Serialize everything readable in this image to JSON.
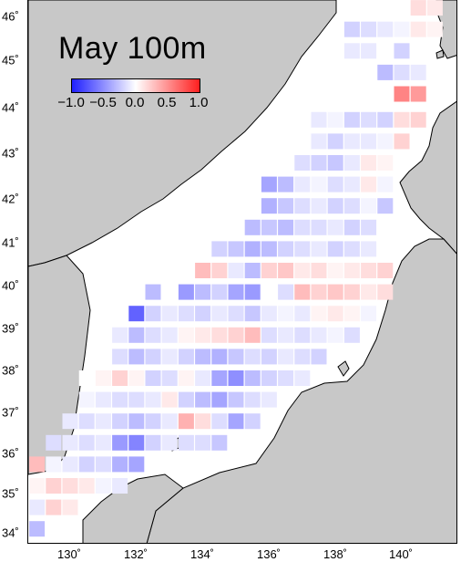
{
  "title": "May 100m",
  "colorbar": {
    "min": -1.0,
    "max": 1.0,
    "ticks": [
      "−1.0",
      "−0.5",
      "0.0",
      "0.5",
      "1.0"
    ],
    "colors": [
      "#1f1fff",
      "#8f8fff",
      "#ffffff",
      "#ff9090",
      "#ff1f1f"
    ]
  },
  "axes": {
    "lat_labels": [
      "46˚",
      "45˚",
      "44˚",
      "43˚",
      "42˚",
      "41˚",
      "40˚",
      "39˚",
      "38˚",
      "37˚",
      "36˚",
      "35˚",
      "34˚"
    ],
    "lon_labels": [
      "130˚",
      "132˚",
      "134˚",
      "136˚",
      "138˚",
      "140˚"
    ]
  },
  "colors": {
    "land": "#c8c8c8",
    "sea": "#ffffff",
    "coast": "#000000"
  },
  "chart_data": {
    "type": "heatmap",
    "title": "May 100m",
    "value_range": [
      -1.0,
      1.0
    ],
    "cells": [
      {
        "lon": 140.5,
        "lat": 46.2,
        "v": 0.15
      },
      {
        "lon": 141.0,
        "lat": 46.2,
        "v": 0.1
      },
      {
        "lon": 138.5,
        "lat": 45.7,
        "v": -0.2
      },
      {
        "lon": 139.0,
        "lat": 45.7,
        "v": -0.15
      },
      {
        "lon": 139.5,
        "lat": 45.7,
        "v": -0.1
      },
      {
        "lon": 140.0,
        "lat": 45.7,
        "v": -0.05
      },
      {
        "lon": 140.5,
        "lat": 45.7,
        "v": 0.1
      },
      {
        "lon": 141.0,
        "lat": 45.7,
        "v": 0.05
      },
      {
        "lon": 138.5,
        "lat": 45.2,
        "v": -0.1
      },
      {
        "lon": 139.0,
        "lat": 45.2,
        "v": -0.1
      },
      {
        "lon": 139.5,
        "lat": 45.2,
        "v": 0.0
      },
      {
        "lon": 140.0,
        "lat": 45.2,
        "v": -0.2
      },
      {
        "lon": 139.5,
        "lat": 44.7,
        "v": -0.3
      },
      {
        "lon": 140.0,
        "lat": 44.7,
        "v": -0.15
      },
      {
        "lon": 140.5,
        "lat": 44.7,
        "v": -0.1
      },
      {
        "lon": 140.0,
        "lat": 44.2,
        "v": 0.55
      },
      {
        "lon": 140.5,
        "lat": 44.2,
        "v": 0.45
      },
      {
        "lon": 137.5,
        "lat": 43.6,
        "v": -0.1
      },
      {
        "lon": 138.0,
        "lat": 43.6,
        "v": -0.05
      },
      {
        "lon": 138.5,
        "lat": 43.6,
        "v": -0.2
      },
      {
        "lon": 139.0,
        "lat": 43.6,
        "v": -0.15
      },
      {
        "lon": 139.5,
        "lat": 43.6,
        "v": -0.2
      },
      {
        "lon": 140.0,
        "lat": 43.6,
        "v": 0.15
      },
      {
        "lon": 140.5,
        "lat": 43.6,
        "v": 0.2
      },
      {
        "lon": 137.5,
        "lat": 43.1,
        "v": -0.1
      },
      {
        "lon": 138.0,
        "lat": 43.1,
        "v": -0.2
      },
      {
        "lon": 138.5,
        "lat": 43.1,
        "v": -0.1
      },
      {
        "lon": 139.0,
        "lat": 43.1,
        "v": -0.1
      },
      {
        "lon": 139.5,
        "lat": 43.1,
        "v": -0.05
      },
      {
        "lon": 140.0,
        "lat": 43.1,
        "v": 0.2
      },
      {
        "lon": 137.0,
        "lat": 42.6,
        "v": -0.15
      },
      {
        "lon": 137.5,
        "lat": 42.6,
        "v": -0.2
      },
      {
        "lon": 138.0,
        "lat": 42.6,
        "v": -0.25
      },
      {
        "lon": 138.5,
        "lat": 42.6,
        "v": -0.1
      },
      {
        "lon": 139.0,
        "lat": 42.6,
        "v": 0.1
      },
      {
        "lon": 139.5,
        "lat": 42.6,
        "v": 0.05
      },
      {
        "lon": 136.0,
        "lat": 42.1,
        "v": -0.4
      },
      {
        "lon": 136.5,
        "lat": 42.1,
        "v": -0.3
      },
      {
        "lon": 137.0,
        "lat": 42.1,
        "v": -0.1
      },
      {
        "lon": 137.5,
        "lat": 42.1,
        "v": -0.05
      },
      {
        "lon": 138.0,
        "lat": 42.1,
        "v": -0.15
      },
      {
        "lon": 138.5,
        "lat": 42.1,
        "v": -0.1
      },
      {
        "lon": 139.0,
        "lat": 42.1,
        "v": 0.1
      },
      {
        "lon": 139.5,
        "lat": 42.1,
        "v": -0.05
      },
      {
        "lon": 136.0,
        "lat": 41.6,
        "v": -0.35
      },
      {
        "lon": 136.5,
        "lat": 41.6,
        "v": -0.25
      },
      {
        "lon": 137.0,
        "lat": 41.6,
        "v": -0.15
      },
      {
        "lon": 137.5,
        "lat": 41.6,
        "v": -0.1
      },
      {
        "lon": 138.0,
        "lat": 41.6,
        "v": -0.2
      },
      {
        "lon": 138.5,
        "lat": 41.6,
        "v": -0.15
      },
      {
        "lon": 139.0,
        "lat": 41.6,
        "v": -0.05
      },
      {
        "lon": 139.5,
        "lat": 41.6,
        "v": -0.25
      },
      {
        "lon": 135.5,
        "lat": 41.1,
        "v": -0.3
      },
      {
        "lon": 136.0,
        "lat": 41.1,
        "v": -0.25
      },
      {
        "lon": 136.5,
        "lat": 41.1,
        "v": -0.3
      },
      {
        "lon": 137.0,
        "lat": 41.1,
        "v": -0.15
      },
      {
        "lon": 137.5,
        "lat": 41.1,
        "v": -0.15
      },
      {
        "lon": 138.0,
        "lat": 41.1,
        "v": -0.1
      },
      {
        "lon": 138.5,
        "lat": 41.1,
        "v": -0.2
      },
      {
        "lon": 139.0,
        "lat": 41.1,
        "v": -0.15
      },
      {
        "lon": 134.5,
        "lat": 40.6,
        "v": -0.2
      },
      {
        "lon": 135.0,
        "lat": 40.6,
        "v": -0.25
      },
      {
        "lon": 135.5,
        "lat": 40.6,
        "v": -0.35
      },
      {
        "lon": 136.0,
        "lat": 40.6,
        "v": -0.3
      },
      {
        "lon": 136.5,
        "lat": 40.6,
        "v": -0.2
      },
      {
        "lon": 137.0,
        "lat": 40.6,
        "v": -0.15
      },
      {
        "lon": 137.5,
        "lat": 40.6,
        "v": -0.1
      },
      {
        "lon": 138.0,
        "lat": 40.6,
        "v": -0.2
      },
      {
        "lon": 138.5,
        "lat": 40.6,
        "v": -0.15
      },
      {
        "lon": 139.0,
        "lat": 40.6,
        "v": -0.1
      },
      {
        "lon": 134.0,
        "lat": 40.1,
        "v": 0.3
      },
      {
        "lon": 134.5,
        "lat": 40.1,
        "v": 0.2
      },
      {
        "lon": 135.0,
        "lat": 40.1,
        "v": -0.1
      },
      {
        "lon": 135.5,
        "lat": 40.1,
        "v": -0.3
      },
      {
        "lon": 136.0,
        "lat": 40.1,
        "v": 0.2
      },
      {
        "lon": 136.5,
        "lat": 40.1,
        "v": 0.25
      },
      {
        "lon": 137.0,
        "lat": 40.1,
        "v": 0.1
      },
      {
        "lon": 137.5,
        "lat": 40.1,
        "v": 0.15
      },
      {
        "lon": 138.0,
        "lat": 40.1,
        "v": 0.05
      },
      {
        "lon": 138.5,
        "lat": 40.1,
        "v": 0.1
      },
      {
        "lon": 139.0,
        "lat": 40.1,
        "v": 0.15
      },
      {
        "lon": 139.5,
        "lat": 40.1,
        "v": 0.2
      },
      {
        "lon": 132.5,
        "lat": 39.6,
        "v": -0.3
      },
      {
        "lon": 133.5,
        "lat": 39.6,
        "v": -0.45
      },
      {
        "lon": 134.0,
        "lat": 39.6,
        "v": -0.3
      },
      {
        "lon": 134.5,
        "lat": 39.6,
        "v": -0.2
      },
      {
        "lon": 135.0,
        "lat": 39.6,
        "v": -0.4
      },
      {
        "lon": 135.5,
        "lat": 39.6,
        "v": -0.45
      },
      {
        "lon": 136.0,
        "lat": 39.6,
        "v": 0.0
      },
      {
        "lon": 136.5,
        "lat": 39.6,
        "v": -0.15
      },
      {
        "lon": 137.0,
        "lat": 39.6,
        "v": 0.3
      },
      {
        "lon": 137.5,
        "lat": 39.6,
        "v": 0.2
      },
      {
        "lon": 138.0,
        "lat": 39.6,
        "v": 0.25
      },
      {
        "lon": 138.5,
        "lat": 39.6,
        "v": 0.2
      },
      {
        "lon": 139.0,
        "lat": 39.6,
        "v": 0.1
      },
      {
        "lon": 139.5,
        "lat": 39.6,
        "v": 0.15
      },
      {
        "lon": 132.0,
        "lat": 39.1,
        "v": -0.7
      },
      {
        "lon": 132.5,
        "lat": 39.1,
        "v": -0.2
      },
      {
        "lon": 133.0,
        "lat": 39.1,
        "v": -0.1
      },
      {
        "lon": 133.5,
        "lat": 39.1,
        "v": -0.15
      },
      {
        "lon": 134.0,
        "lat": 39.1,
        "v": -0.2
      },
      {
        "lon": 134.5,
        "lat": 39.1,
        "v": -0.1
      },
      {
        "lon": 135.0,
        "lat": 39.1,
        "v": -0.15
      },
      {
        "lon": 135.5,
        "lat": 39.1,
        "v": -0.25
      },
      {
        "lon": 136.0,
        "lat": 39.1,
        "v": -0.1
      },
      {
        "lon": 136.5,
        "lat": 39.1,
        "v": -0.05
      },
      {
        "lon": 137.0,
        "lat": 39.1,
        "v": -0.1
      },
      {
        "lon": 137.5,
        "lat": 39.1,
        "v": 0.05
      },
      {
        "lon": 138.0,
        "lat": 39.1,
        "v": 0.1
      },
      {
        "lon": 138.5,
        "lat": 39.1,
        "v": 0.05
      },
      {
        "lon": 139.0,
        "lat": 39.1,
        "v": -0.05
      },
      {
        "lon": 131.5,
        "lat": 38.6,
        "v": -0.1
      },
      {
        "lon": 132.0,
        "lat": 38.6,
        "v": -0.3
      },
      {
        "lon": 132.5,
        "lat": 38.6,
        "v": -0.15
      },
      {
        "lon": 133.0,
        "lat": 38.6,
        "v": -0.1
      },
      {
        "lon": 133.5,
        "lat": 38.6,
        "v": 0.05
      },
      {
        "lon": 134.0,
        "lat": 38.6,
        "v": 0.1
      },
      {
        "lon": 134.5,
        "lat": 38.6,
        "v": 0.15
      },
      {
        "lon": 135.0,
        "lat": 38.6,
        "v": 0.2
      },
      {
        "lon": 135.5,
        "lat": 38.6,
        "v": 0.3
      },
      {
        "lon": 136.0,
        "lat": 38.6,
        "v": -0.15
      },
      {
        "lon": 136.5,
        "lat": 38.6,
        "v": -0.1
      },
      {
        "lon": 137.0,
        "lat": 38.6,
        "v": -0.15
      },
      {
        "lon": 137.5,
        "lat": 38.6,
        "v": -0.1
      },
      {
        "lon": 138.0,
        "lat": 38.6,
        "v": -0.05
      },
      {
        "lon": 138.5,
        "lat": 38.6,
        "v": -0.15
      },
      {
        "lon": 131.5,
        "lat": 38.1,
        "v": -0.15
      },
      {
        "lon": 132.0,
        "lat": 38.1,
        "v": -0.3
      },
      {
        "lon": 132.5,
        "lat": 38.1,
        "v": -0.2
      },
      {
        "lon": 133.0,
        "lat": 38.1,
        "v": -0.1
      },
      {
        "lon": 133.5,
        "lat": 38.1,
        "v": -0.2
      },
      {
        "lon": 134.0,
        "lat": 38.1,
        "v": -0.3
      },
      {
        "lon": 134.5,
        "lat": 38.1,
        "v": -0.35
      },
      {
        "lon": 135.0,
        "lat": 38.1,
        "v": -0.25
      },
      {
        "lon": 135.5,
        "lat": 38.1,
        "v": -0.15
      },
      {
        "lon": 136.0,
        "lat": 38.1,
        "v": -0.2
      },
      {
        "lon": 136.5,
        "lat": 38.1,
        "v": -0.1
      },
      {
        "lon": 137.0,
        "lat": 38.1,
        "v": -0.15
      },
      {
        "lon": 137.5,
        "lat": 38.1,
        "v": -0.2
      },
      {
        "lon": 130.5,
        "lat": 37.6,
        "v": 0.0
      },
      {
        "lon": 131.0,
        "lat": 37.6,
        "v": 0.05
      },
      {
        "lon": 131.5,
        "lat": 37.6,
        "v": 0.2
      },
      {
        "lon": 132.0,
        "lat": 37.6,
        "v": 0.05
      },
      {
        "lon": 132.5,
        "lat": 37.6,
        "v": -0.2
      },
      {
        "lon": 133.0,
        "lat": 37.6,
        "v": -0.15
      },
      {
        "lon": 133.5,
        "lat": 37.6,
        "v": 0.05
      },
      {
        "lon": 134.0,
        "lat": 37.6,
        "v": -0.1
      },
      {
        "lon": 134.5,
        "lat": 37.6,
        "v": -0.4
      },
      {
        "lon": 135.0,
        "lat": 37.6,
        "v": -0.5
      },
      {
        "lon": 135.5,
        "lat": 37.6,
        "v": -0.3
      },
      {
        "lon": 136.0,
        "lat": 37.6,
        "v": -0.2
      },
      {
        "lon": 136.5,
        "lat": 37.6,
        "v": -0.15
      },
      {
        "lon": 137.0,
        "lat": 37.6,
        "v": -0.1
      },
      {
        "lon": 130.5,
        "lat": 37.1,
        "v": -0.05
      },
      {
        "lon": 131.0,
        "lat": 37.1,
        "v": -0.1
      },
      {
        "lon": 131.5,
        "lat": 37.1,
        "v": -0.15
      },
      {
        "lon": 132.0,
        "lat": 37.1,
        "v": -0.15
      },
      {
        "lon": 132.5,
        "lat": 37.1,
        "v": -0.1
      },
      {
        "lon": 133.0,
        "lat": 37.1,
        "v": 0.1
      },
      {
        "lon": 133.5,
        "lat": 37.1,
        "v": -0.2
      },
      {
        "lon": 134.0,
        "lat": 37.1,
        "v": -0.3
      },
      {
        "lon": 134.5,
        "lat": 37.1,
        "v": -0.4
      },
      {
        "lon": 135.0,
        "lat": 37.1,
        "v": -0.25
      },
      {
        "lon": 135.5,
        "lat": 37.1,
        "v": -0.15
      },
      {
        "lon": 136.0,
        "lat": 37.1,
        "v": -0.1
      },
      {
        "lon": 130.0,
        "lat": 36.6,
        "v": -0.1
      },
      {
        "lon": 130.5,
        "lat": 36.6,
        "v": -0.15
      },
      {
        "lon": 131.0,
        "lat": 36.6,
        "v": -0.1
      },
      {
        "lon": 131.5,
        "lat": 36.6,
        "v": -0.2
      },
      {
        "lon": 132.0,
        "lat": 36.6,
        "v": -0.3
      },
      {
        "lon": 132.5,
        "lat": 36.6,
        "v": -0.2
      },
      {
        "lon": 133.0,
        "lat": 36.6,
        "v": -0.1
      },
      {
        "lon": 133.5,
        "lat": 36.6,
        "v": 0.35
      },
      {
        "lon": 134.0,
        "lat": 36.6,
        "v": 0.15
      },
      {
        "lon": 134.5,
        "lat": 36.6,
        "v": -0.15
      },
      {
        "lon": 135.0,
        "lat": 36.6,
        "v": -0.4
      },
      {
        "lon": 135.5,
        "lat": 36.6,
        "v": -0.2
      },
      {
        "lon": 129.5,
        "lat": 36.1,
        "v": -0.15
      },
      {
        "lon": 130.0,
        "lat": 36.1,
        "v": -0.1
      },
      {
        "lon": 130.5,
        "lat": 36.1,
        "v": -0.15
      },
      {
        "lon": 131.0,
        "lat": 36.1,
        "v": -0.1
      },
      {
        "lon": 131.5,
        "lat": 36.1,
        "v": -0.45
      },
      {
        "lon": 132.0,
        "lat": 36.1,
        "v": -0.55
      },
      {
        "lon": 132.5,
        "lat": 36.1,
        "v": -0.2
      },
      {
        "lon": 133.0,
        "lat": 36.1,
        "v": -0.1
      },
      {
        "lon": 133.5,
        "lat": 36.1,
        "v": -0.15
      },
      {
        "lon": 134.0,
        "lat": 36.1,
        "v": -0.15
      },
      {
        "lon": 134.5,
        "lat": 36.1,
        "v": -0.25
      },
      {
        "lon": 129.0,
        "lat": 35.6,
        "v": 0.3
      },
      {
        "lon": 129.5,
        "lat": 35.6,
        "v": -0.05
      },
      {
        "lon": 130.0,
        "lat": 35.6,
        "v": -0.1
      },
      {
        "lon": 130.5,
        "lat": 35.6,
        "v": -0.2
      },
      {
        "lon": 131.0,
        "lat": 35.6,
        "v": -0.15
      },
      {
        "lon": 131.5,
        "lat": 35.6,
        "v": -0.35
      },
      {
        "lon": 132.0,
        "lat": 35.6,
        "v": -0.4
      },
      {
        "lon": 129.0,
        "lat": 35.1,
        "v": 0.05
      },
      {
        "lon": 129.5,
        "lat": 35.1,
        "v": 0.2
      },
      {
        "lon": 130.0,
        "lat": 35.1,
        "v": 0.15
      },
      {
        "lon": 130.5,
        "lat": 35.1,
        "v": 0.1
      },
      {
        "lon": 131.0,
        "lat": 35.1,
        "v": -0.05
      },
      {
        "lon": 131.5,
        "lat": 35.1,
        "v": -0.1
      },
      {
        "lon": 129.0,
        "lat": 34.6,
        "v": -0.1
      },
      {
        "lon": 129.5,
        "lat": 34.6,
        "v": 0.2
      },
      {
        "lon": 130.0,
        "lat": 34.6,
        "v": 0.1
      },
      {
        "lon": 129.0,
        "lat": 34.1,
        "v": -0.3
      },
      {
        "lon": 129.5,
        "lat": 34.1,
        "v": 0.0
      }
    ]
  }
}
